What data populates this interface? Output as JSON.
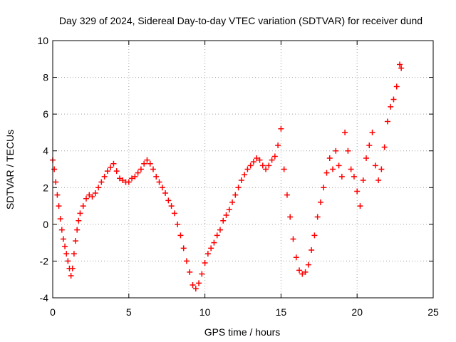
{
  "chart_data": {
    "type": "scatter",
    "title": "Day 329 of 2024, Sidereal Day-to-day VTEC variation (SDTVAR) for receiver dund",
    "xlabel": "GPS time / hours",
    "ylabel": "SDTVAR / TECUs",
    "xlim": [
      0,
      25
    ],
    "ylim": [
      -4,
      10
    ],
    "xticks": [
      0,
      5,
      10,
      15,
      20,
      25
    ],
    "yticks": [
      -4,
      -2,
      0,
      2,
      4,
      6,
      8,
      10
    ],
    "grid": true,
    "marker": "+",
    "series_color": "#ff0000",
    "series": [
      {
        "name": "SDTVAR",
        "x": [
          0.0,
          0.1,
          0.2,
          0.3,
          0.4,
          0.5,
          0.6,
          0.7,
          0.8,
          0.9,
          1.0,
          1.1,
          1.2,
          1.3,
          1.4,
          1.5,
          1.6,
          1.7,
          1.8,
          2.0,
          2.2,
          2.4,
          2.6,
          2.8,
          3.0,
          3.2,
          3.4,
          3.6,
          3.8,
          4.0,
          4.2,
          4.4,
          4.6,
          4.8,
          5.0,
          5.2,
          5.4,
          5.6,
          5.8,
          6.0,
          6.2,
          6.4,
          6.6,
          6.8,
          7.0,
          7.2,
          7.4,
          7.6,
          7.8,
          8.0,
          8.2,
          8.4,
          8.6,
          8.8,
          9.0,
          9.2,
          9.4,
          9.6,
          9.8,
          10.0,
          10.2,
          10.4,
          10.6,
          10.8,
          11.0,
          11.2,
          11.4,
          11.6,
          11.8,
          12.0,
          12.2,
          12.4,
          12.6,
          12.8,
          13.0,
          13.2,
          13.4,
          13.6,
          13.8,
          14.0,
          14.2,
          14.4,
          14.6,
          14.8,
          15.0,
          15.2,
          15.4,
          15.6,
          15.8,
          16.0,
          16.2,
          16.4,
          16.6,
          16.8,
          17.0,
          17.2,
          17.4,
          17.6,
          17.8,
          18.0,
          18.2,
          18.4,
          18.6,
          18.8,
          19.0,
          19.2,
          19.4,
          19.6,
          19.8,
          20.0,
          20.2,
          20.4,
          20.6,
          20.8,
          21.0,
          21.2,
          21.4,
          21.6,
          21.8,
          22.0,
          22.2,
          22.4,
          22.6,
          22.8,
          22.9
        ],
        "y": [
          3.5,
          3.0,
          2.3,
          1.6,
          1.0,
          0.3,
          -0.3,
          -0.8,
          -1.2,
          -1.6,
          -2.0,
          -2.4,
          -2.8,
          -2.4,
          -1.6,
          -0.9,
          -0.3,
          0.2,
          0.6,
          1.0,
          1.4,
          1.6,
          1.5,
          1.7,
          2.0,
          2.3,
          2.6,
          2.9,
          3.1,
          3.3,
          2.9,
          2.5,
          2.4,
          2.3,
          2.3,
          2.5,
          2.6,
          2.8,
          3.0,
          3.3,
          3.5,
          3.3,
          3.0,
          2.6,
          2.3,
          2.0,
          1.7,
          1.3,
          1.0,
          0.6,
          0.0,
          -0.6,
          -1.3,
          -2.0,
          -2.6,
          -3.3,
          -3.5,
          -3.2,
          -2.7,
          -2.1,
          -1.6,
          -1.3,
          -1.0,
          -0.6,
          -0.3,
          0.2,
          0.5,
          0.8,
          1.2,
          1.6,
          2.0,
          2.4,
          2.7,
          3.0,
          3.2,
          3.4,
          3.6,
          3.5,
          3.2,
          3.0,
          3.2,
          3.5,
          3.7,
          4.3,
          5.2,
          3.0,
          1.6,
          0.4,
          -0.8,
          -1.8,
          -2.5,
          -2.7,
          -2.6,
          -2.2,
          -1.4,
          -0.6,
          0.4,
          1.2,
          2.0,
          2.8,
          3.6,
          3.0,
          4.0,
          3.2,
          2.6,
          5.0,
          4.0,
          3.0,
          2.6,
          1.8,
          1.0,
          2.4,
          3.6,
          4.3,
          5.0,
          3.2,
          2.4,
          3.0,
          4.2,
          5.6,
          6.4,
          6.8,
          7.5,
          8.7,
          8.5
        ]
      }
    ]
  }
}
